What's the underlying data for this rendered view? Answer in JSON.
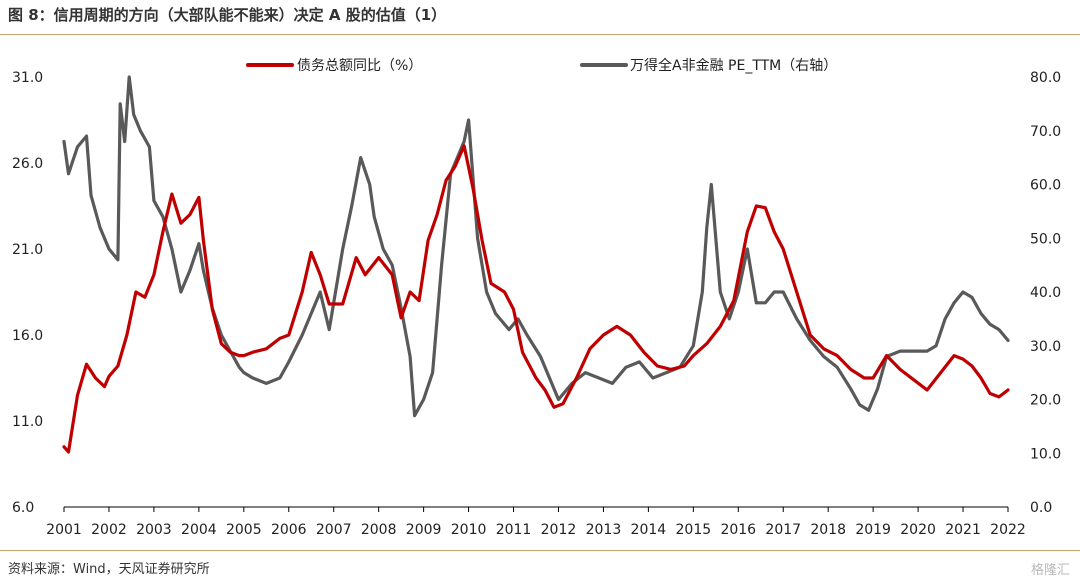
{
  "header": {
    "title": "图 8：信用周期的方向（大部队能不能来）决定 A 股的估值（1）"
  },
  "footer": {
    "source": "资料来源：Wind，天风证券研究所",
    "watermark": "格隆汇"
  },
  "colors": {
    "series_left": "#c00000",
    "series_right": "#595959",
    "rule": "#c9a86a"
  },
  "chart_data": {
    "type": "line",
    "title": "",
    "xlabel": "",
    "ylabel_left": "",
    "ylabel_right": "",
    "x_ticks": [
      "2001",
      "2002",
      "2003",
      "2004",
      "2005",
      "2006",
      "2007",
      "2008",
      "2009",
      "2010",
      "2011",
      "2012",
      "2013",
      "2014",
      "2015",
      "2016",
      "2017",
      "2018",
      "2019",
      "2020",
      "2021",
      "2022"
    ],
    "xlim": [
      2001.0,
      2022.0
    ],
    "ylim_left": [
      6.0,
      31.0
    ],
    "ylim_right": [
      0.0,
      80.0
    ],
    "y_ticks_left": [
      "6.0",
      "11.0",
      "16.0",
      "21.0",
      "26.0",
      "31.0"
    ],
    "y_ticks_right": [
      "0.0",
      "10.0",
      "20.0",
      "30.0",
      "40.0",
      "50.0",
      "60.0",
      "70.0",
      "80.0"
    ],
    "legend_position": "top",
    "grid": false,
    "series": [
      {
        "name": "债务总额同比（%）",
        "axis": "left",
        "color": "#c00000",
        "x": [
          2001.0,
          2001.1,
          2001.3,
          2001.5,
          2001.7,
          2001.9,
          2002.0,
          2002.2,
          2002.4,
          2002.6,
          2002.8,
          2003.0,
          2003.2,
          2003.4,
          2003.6,
          2003.8,
          2004.0,
          2004.1,
          2004.3,
          2004.5,
          2004.7,
          2004.9,
          2005.0,
          2005.2,
          2005.5,
          2005.8,
          2006.0,
          2006.3,
          2006.5,
          2006.7,
          2006.9,
          2007.2,
          2007.5,
          2007.7,
          2008.0,
          2008.3,
          2008.5,
          2008.7,
          2008.9,
          2009.1,
          2009.3,
          2009.5,
          2009.7,
          2009.9,
          2010.1,
          2010.3,
          2010.5,
          2010.8,
          2011.0,
          2011.2,
          2011.5,
          2011.7,
          2011.9,
          2012.1,
          2012.4,
          2012.7,
          2013.0,
          2013.3,
          2013.6,
          2013.9,
          2014.2,
          2014.5,
          2014.8,
          2015.0,
          2015.3,
          2015.6,
          2015.9,
          2016.2,
          2016.4,
          2016.6,
          2016.8,
          2017.0,
          2017.3,
          2017.6,
          2017.9,
          2018.2,
          2018.5,
          2018.8,
          2019.0,
          2019.3,
          2019.6,
          2019.9,
          2020.2,
          2020.5,
          2020.8,
          2021.0,
          2021.2,
          2021.4,
          2021.6,
          2021.8,
          2022.0
        ],
        "values": [
          9.5,
          9.2,
          12.5,
          14.3,
          13.5,
          13.0,
          13.6,
          14.2,
          16.0,
          18.5,
          18.2,
          19.5,
          22.0,
          24.2,
          22.5,
          23.0,
          24.0,
          21.5,
          17.5,
          15.5,
          15.0,
          14.8,
          14.8,
          15.0,
          15.2,
          15.8,
          16.0,
          18.5,
          20.8,
          19.5,
          17.8,
          17.8,
          20.5,
          19.5,
          20.5,
          19.5,
          17.0,
          18.5,
          18.0,
          21.5,
          23.0,
          25.0,
          25.8,
          27.0,
          24.5,
          21.5,
          19.0,
          18.5,
          17.5,
          15.0,
          13.5,
          12.8,
          11.8,
          12.0,
          13.5,
          15.2,
          16.0,
          16.5,
          16.0,
          15.0,
          14.2,
          14.0,
          14.2,
          14.8,
          15.5,
          16.5,
          18.0,
          22.0,
          23.5,
          23.4,
          22.0,
          21.0,
          18.5,
          16.0,
          15.2,
          14.8,
          14.0,
          13.5,
          13.5,
          14.8,
          14.0,
          13.4,
          12.8,
          13.8,
          14.8,
          14.6,
          14.2,
          13.5,
          12.6,
          12.4,
          12.8
        ]
      },
      {
        "name": "万得全A非金融 PE_TTM（右轴）",
        "axis": "right",
        "color": "#595959",
        "x": [
          2001.0,
          2001.1,
          2001.3,
          2001.5,
          2001.6,
          2001.8,
          2002.0,
          2002.2,
          2002.25,
          2002.35,
          2002.45,
          2002.55,
          2002.7,
          2002.9,
          2003.0,
          2003.2,
          2003.4,
          2003.6,
          2003.8,
          2004.0,
          2004.1,
          2004.3,
          2004.5,
          2004.7,
          2004.9,
          2005.0,
          2005.2,
          2005.5,
          2005.8,
          2006.0,
          2006.3,
          2006.5,
          2006.7,
          2006.9,
          2007.0,
          2007.2,
          2007.4,
          2007.6,
          2007.8,
          2007.9,
          2008.1,
          2008.3,
          2008.5,
          2008.7,
          2008.8,
          2009.0,
          2009.2,
          2009.4,
          2009.6,
          2009.8,
          2009.9,
          2010.0,
          2010.2,
          2010.4,
          2010.6,
          2010.9,
          2011.1,
          2011.3,
          2011.6,
          2011.8,
          2012.0,
          2012.3,
          2012.6,
          2012.9,
          2013.2,
          2013.5,
          2013.8,
          2014.1,
          2014.4,
          2014.7,
          2015.0,
          2015.2,
          2015.3,
          2015.4,
          2015.5,
          2015.6,
          2015.8,
          2016.0,
          2016.2,
          2016.4,
          2016.6,
          2016.8,
          2017.0,
          2017.3,
          2017.6,
          2017.9,
          2018.2,
          2018.5,
          2018.7,
          2018.9,
          2019.1,
          2019.3,
          2019.6,
          2019.9,
          2020.2,
          2020.4,
          2020.6,
          2020.8,
          2021.0,
          2021.2,
          2021.4,
          2021.6,
          2021.8,
          2022.0
        ],
        "values": [
          68,
          62,
          67,
          69,
          58,
          52,
          48,
          46,
          75,
          68,
          80,
          73,
          70,
          67,
          57,
          54,
          48,
          40,
          44,
          49,
          44,
          37,
          32,
          29,
          26,
          25,
          24,
          23,
          24,
          27,
          32,
          36,
          40,
          33,
          38,
          48,
          56,
          65,
          60,
          54,
          48,
          45,
          37,
          28,
          17,
          20,
          25,
          45,
          62,
          66,
          68,
          72,
          50,
          40,
          36,
          33,
          35,
          32,
          28,
          24,
          20,
          23,
          25,
          24,
          23,
          26,
          27,
          24,
          25,
          26,
          30,
          40,
          52,
          60,
          50,
          40,
          35,
          40,
          48,
          38,
          38,
          40,
          40,
          35,
          31,
          28,
          26,
          22,
          19,
          18,
          22,
          28,
          29,
          29,
          29,
          30,
          35,
          38,
          40,
          39,
          36,
          34,
          33,
          31
        ]
      }
    ]
  }
}
